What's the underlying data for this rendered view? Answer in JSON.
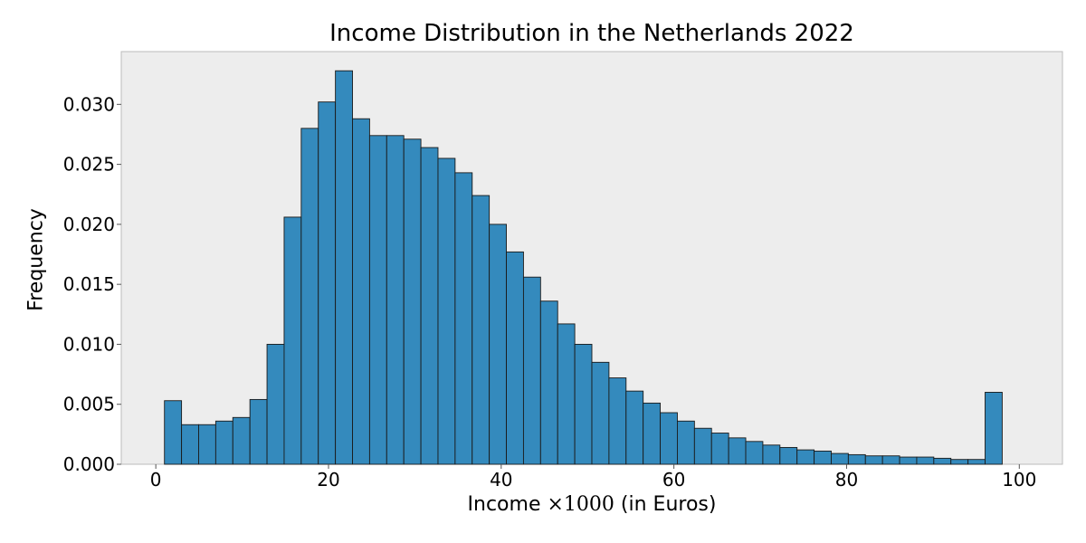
{
  "chart_data": {
    "type": "bar",
    "title": "Income Distribution in the Netherlands 2022",
    "xlabel_prefix": "Income",
    "xlabel_math": "×1000",
    "xlabel_suffix": "(in Euros)",
    "ylabel": "Frequency",
    "xlim": [
      -4,
      105
    ],
    "ylim": [
      0,
      0.0344
    ],
    "xticks": [
      0,
      20,
      40,
      60,
      80,
      100
    ],
    "xtick_labels": [
      "0",
      "20",
      "40",
      "60",
      "80",
      "100"
    ],
    "yticks": [
      0,
      0.005,
      0.01,
      0.015,
      0.02,
      0.025,
      0.03
    ],
    "ytick_labels": [
      "0.000",
      "0.005",
      "0.010",
      "0.015",
      "0.020",
      "0.025",
      "0.030"
    ],
    "bin_start": 1,
    "bin_width": 1.98,
    "values": [
      0.0053,
      0.0033,
      0.0033,
      0.0036,
      0.0039,
      0.0054,
      0.01,
      0.0206,
      0.028,
      0.0302,
      0.0328,
      0.0288,
      0.0274,
      0.0274,
      0.0271,
      0.0264,
      0.0255,
      0.0243,
      0.0224,
      0.02,
      0.0177,
      0.0156,
      0.0136,
      0.0117,
      0.01,
      0.0085,
      0.0072,
      0.0061,
      0.0051,
      0.0043,
      0.0036,
      0.003,
      0.0026,
      0.0022,
      0.0019,
      0.0016,
      0.0014,
      0.0012,
      0.0011,
      0.0009,
      0.0008,
      0.0007,
      0.0007,
      0.0006,
      0.0006,
      0.0005,
      0.0004,
      0.0004,
      0.006
    ],
    "grid": false,
    "colors": {
      "bar": "#348abd",
      "bar_edge": "#1a1a1a",
      "plot_bg": "#ededed",
      "frame": "#bcbcbc"
    }
  }
}
